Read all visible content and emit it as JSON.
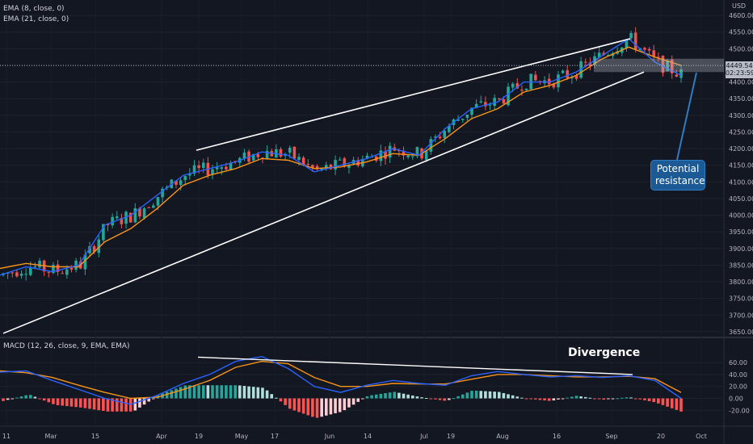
{
  "legends": {
    "ema8": "EMA (8, close, 0)",
    "ema21": "EMA (21, close, 0)",
    "macd": "MACD (12, 26, close, 9, EMA, EMA)"
  },
  "price_tag": {
    "price": "4449.54",
    "countdown": "02:23:59"
  },
  "annotations": {
    "resistance": "Potential resistance",
    "divergence": "Divergence"
  },
  "colors": {
    "background": "#131722",
    "up_candle": "#26a69a",
    "down_candle": "#ef5350",
    "ema_fast": "#2962ff",
    "ema_slow": "#f7931a",
    "macd_line": "#2962ff",
    "signal_line": "#f7931a",
    "hist_up_strong": "#26a69a",
    "hist_up_weak": "#b2dfdb",
    "hist_down_strong": "#ff5252",
    "hist_down_weak": "#ffcdd2",
    "annotation": "#1b5a94"
  },
  "chart_data": [
    {
      "type": "candlestick",
      "y_axis_unit": "USD",
      "ylim": [
        3640,
        4610
      ],
      "y_ticks": [
        3650,
        3700,
        3750,
        3800,
        3850,
        3900,
        3950,
        4000,
        4050,
        4100,
        4150,
        4200,
        4250,
        4300,
        4350,
        4400,
        4450,
        4500,
        4550,
        4600
      ],
      "x_ticks": [
        "11",
        "Mar",
        "15",
        "Apr",
        "19",
        "May",
        "17",
        "Jun",
        "14",
        "Jul",
        "19",
        "Aug",
        "16",
        "Sep",
        "20",
        "Oct"
      ],
      "series": [
        {
          "name": "EMA (8, close, 0)",
          "values": [
            3820,
            3845,
            3830,
            3850,
            3970,
            4000,
            4060,
            4120,
            4140,
            4160,
            4190,
            4180,
            4130,
            4150,
            4170,
            4200,
            4180,
            4260,
            4320,
            4340,
            4400,
            4400,
            4430,
            4480,
            4530,
            4460,
            4420
          ]
        },
        {
          "name": "EMA (21, close, 0)",
          "values": [
            3840,
            3855,
            3845,
            3845,
            3920,
            3960,
            4020,
            4090,
            4120,
            4140,
            4170,
            4165,
            4140,
            4145,
            4160,
            4185,
            4180,
            4230,
            4290,
            4320,
            4370,
            4390,
            4420,
            4470,
            4505,
            4475,
            4450
          ]
        }
      ],
      "annotations": [
        "Potential resistance"
      ]
    },
    {
      "type": "macd",
      "title": "MACD (12, 26, close, 9, EMA, EMA)",
      "ylim": [
        -25,
        75
      ],
      "y_ticks": [
        -20.0,
        0.0,
        20.0,
        40.0,
        60.0
      ],
      "series": [
        {
          "name": "MACD",
          "values": [
            44,
            46,
            30,
            15,
            0,
            -10,
            5,
            25,
            40,
            62,
            70,
            50,
            20,
            10,
            22,
            30,
            25,
            22,
            38,
            45,
            40,
            36,
            38,
            35,
            38,
            30,
            0
          ]
        },
        {
          "name": "Signal",
          "values": [
            46,
            43,
            35,
            22,
            10,
            0,
            2,
            15,
            30,
            52,
            62,
            58,
            35,
            20,
            20,
            25,
            24,
            24,
            32,
            40,
            40,
            38,
            36,
            36,
            37,
            33,
            10
          ]
        }
      ],
      "annotations": [
        "Divergence"
      ]
    }
  ]
}
